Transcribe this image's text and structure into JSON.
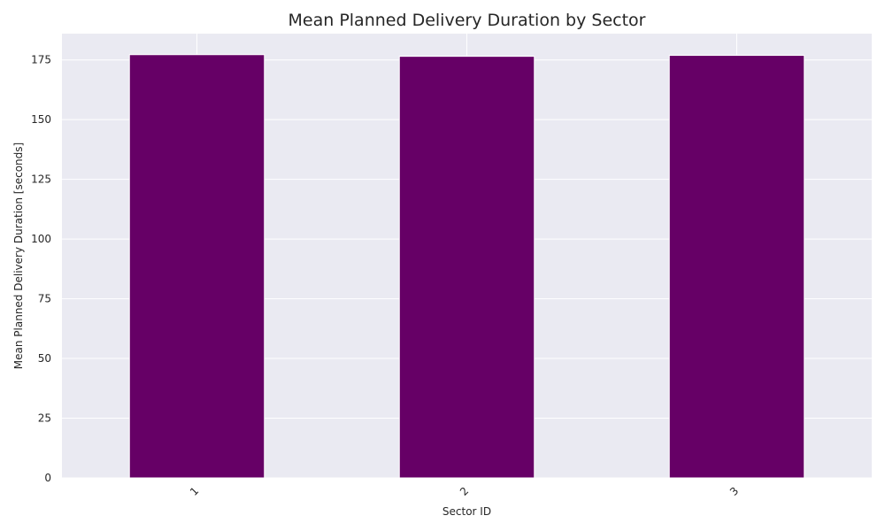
{
  "chart_data": {
    "type": "bar",
    "title": "Mean Planned Delivery Duration by Sector",
    "xlabel": "Sector ID",
    "ylabel": "Mean Planned Delivery Duration [seconds]",
    "categories": [
      "1",
      "2",
      "3"
    ],
    "values": [
      177.2,
      176.5,
      176.9
    ],
    "ylim": [
      0,
      186
    ],
    "yticks": [
      0,
      25,
      50,
      75,
      100,
      125,
      150,
      175
    ],
    "grid": true,
    "bar_color": "#660066",
    "background_color": "#eaeaf2",
    "grid_color": "#ffffff"
  }
}
